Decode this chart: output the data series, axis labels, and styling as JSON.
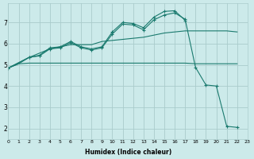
{
  "xlabel": "Humidex (Indice chaleur)",
  "background_color": "#cceaea",
  "grid_color": "#aacccc",
  "line_color": "#1a7a6e",
  "xlim": [
    0,
    23
  ],
  "ylim": [
    1.5,
    7.9
  ],
  "xticks": [
    0,
    1,
    2,
    3,
    4,
    5,
    6,
    7,
    8,
    9,
    10,
    11,
    12,
    13,
    14,
    15,
    16,
    17,
    18,
    19,
    20,
    21,
    22,
    23
  ],
  "yticks": [
    2,
    3,
    4,
    5,
    6,
    7
  ],
  "series": [
    {
      "x": [
        0,
        1,
        2,
        3,
        4,
        5,
        6,
        7,
        8,
        9,
        10,
        11,
        12,
        13,
        14,
        15,
        16,
        17,
        18,
        19,
        20,
        21,
        22
      ],
      "y": [
        4.85,
        5.05,
        5.08,
        5.08,
        5.08,
        5.08,
        5.08,
        5.08,
        5.08,
        5.08,
        5.08,
        5.08,
        5.08,
        5.08,
        5.08,
        5.08,
        5.08,
        5.08,
        5.05,
        5.05,
        5.05,
        5.05,
        5.05
      ],
      "marker": false
    },
    {
      "x": [
        0,
        1,
        2,
        3,
        4,
        5,
        6,
        7,
        8,
        9,
        10,
        11,
        12,
        13,
        14,
        15,
        16,
        17,
        18,
        19,
        20,
        21,
        22
      ],
      "y": [
        4.85,
        5.05,
        5.35,
        5.55,
        5.75,
        5.85,
        5.95,
        5.95,
        5.95,
        6.1,
        6.15,
        6.2,
        6.25,
        6.3,
        6.4,
        6.5,
        6.55,
        6.6,
        6.6,
        6.6,
        6.6,
        6.6,
        6.55
      ],
      "marker": false
    },
    {
      "x": [
        0,
        2,
        3,
        4,
        5,
        6,
        7,
        8,
        9,
        10,
        11,
        12,
        13,
        14,
        15,
        16,
        17
      ],
      "y": [
        4.85,
        5.35,
        5.45,
        5.8,
        5.85,
        6.1,
        5.85,
        5.75,
        5.85,
        6.55,
        7.0,
        6.95,
        6.75,
        7.25,
        7.52,
        7.55,
        7.1
      ],
      "marker": true
    },
    {
      "x": [
        0,
        2,
        3,
        4,
        5,
        6,
        7,
        8,
        9,
        10,
        11,
        12,
        13,
        14,
        15,
        16,
        17,
        18,
        19,
        20,
        21,
        22
      ],
      "y": [
        4.85,
        5.35,
        5.42,
        5.75,
        5.8,
        6.05,
        5.8,
        5.7,
        5.8,
        6.45,
        6.92,
        6.88,
        6.65,
        7.12,
        7.35,
        7.45,
        7.15,
        4.88,
        4.05,
        4.0,
        2.1,
        2.05
      ],
      "marker": true
    }
  ]
}
